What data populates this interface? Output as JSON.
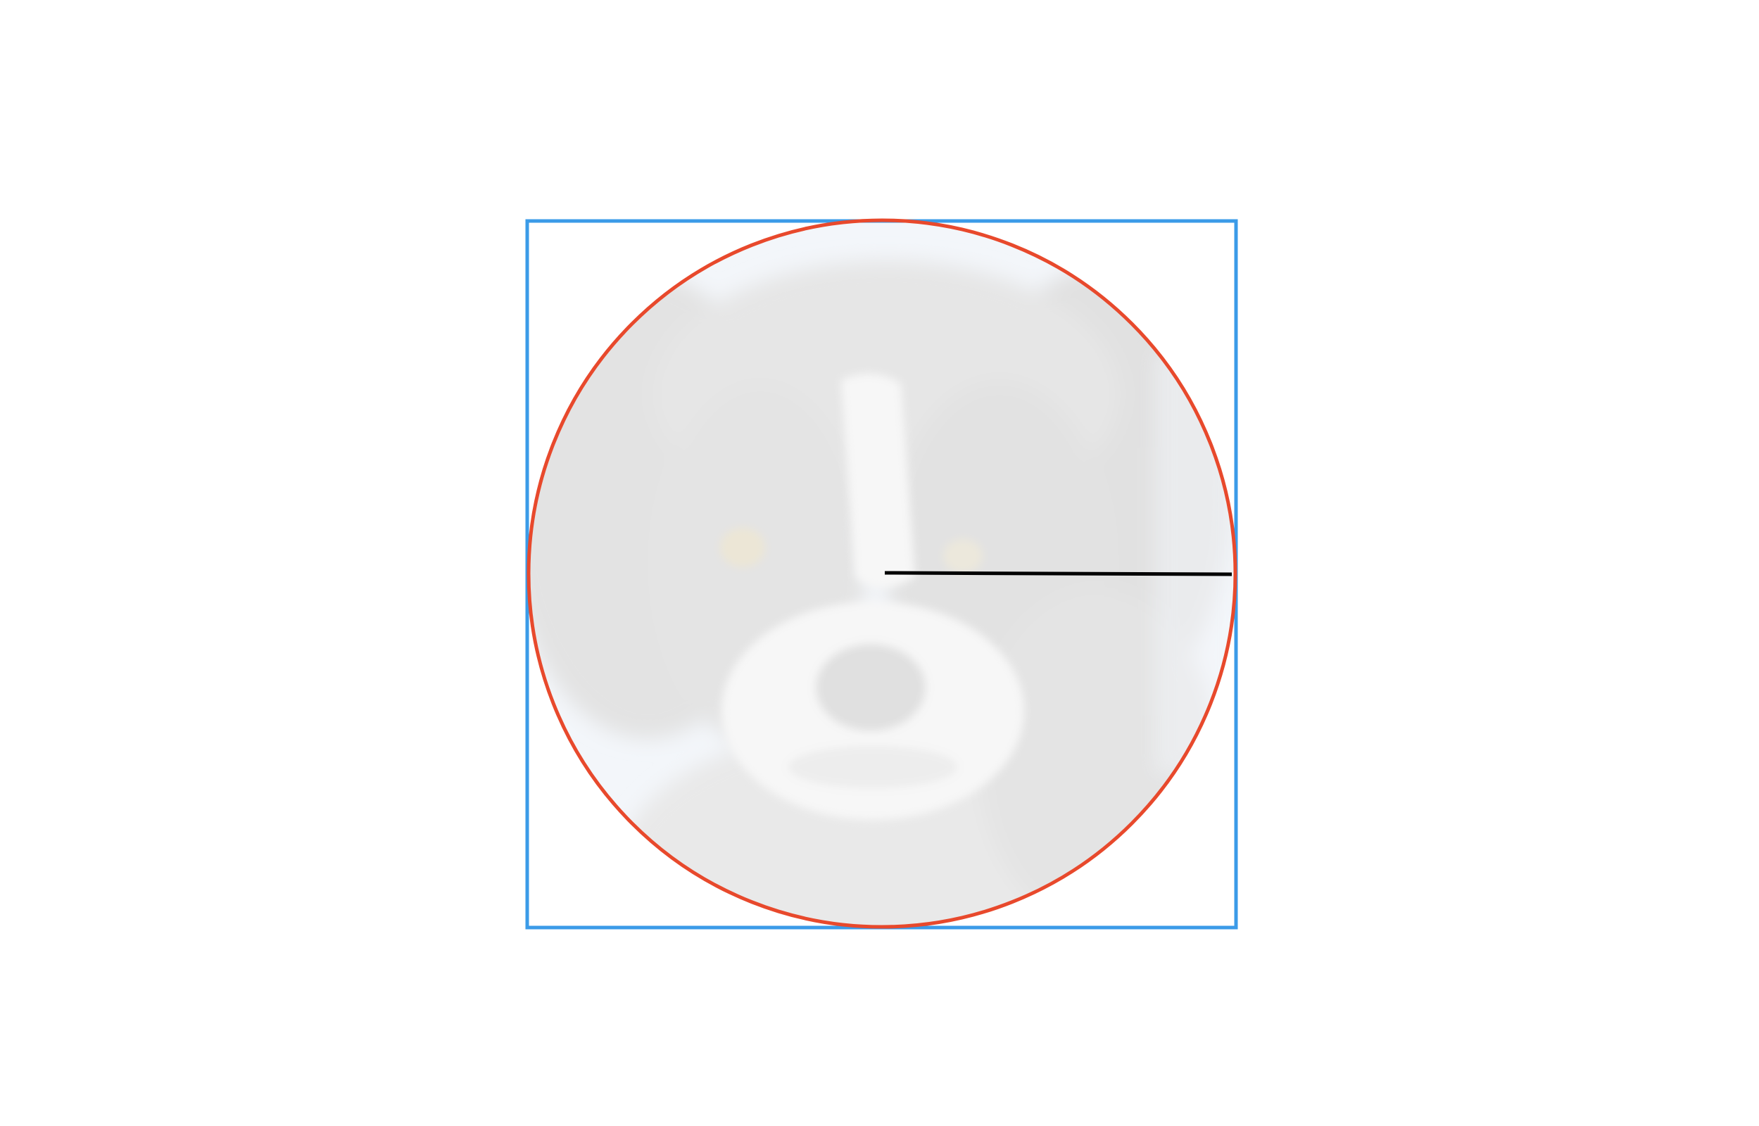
{
  "figure": {
    "shapes": [
      "bounding-square",
      "circle",
      "radius-line"
    ],
    "photo_subject": "dog face",
    "colors": {
      "background": "#ffffff",
      "bounding_square": "#3b9be8",
      "circle": "#e8492c",
      "radius_line": "#000000",
      "photo_light": "#f3f6fa",
      "photo_fur_dark": "#e2e2e2",
      "photo_fur_white": "#f7f7f7"
    }
  }
}
